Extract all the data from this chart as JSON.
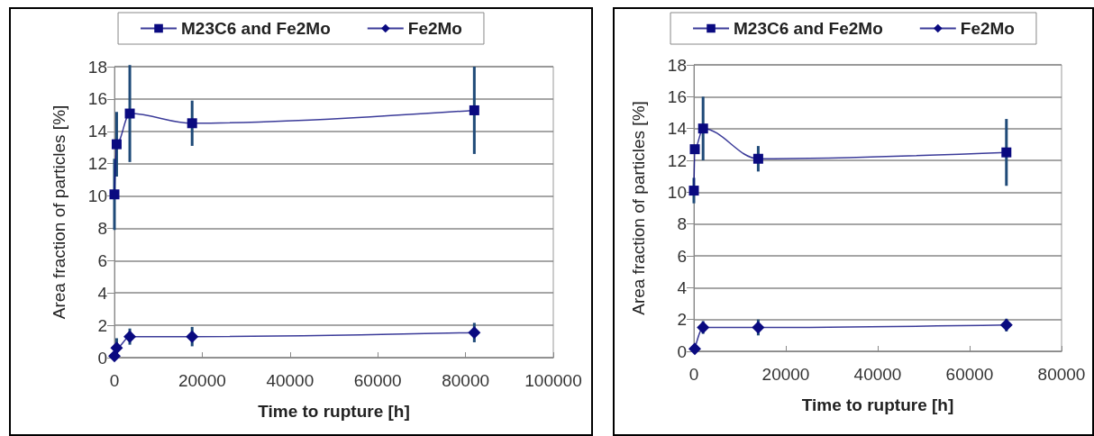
{
  "chart_data": [
    {
      "type": "line",
      "xlabel": "Time to rupture [h]",
      "ylabel": "Area fraction of particles [%]",
      "xlim": [
        0,
        100000
      ],
      "xticks": [
        0,
        20000,
        40000,
        60000,
        80000,
        100000
      ],
      "ylim": [
        0,
        18
      ],
      "yticks": [
        0,
        2,
        4,
        6,
        8,
        10,
        12,
        14,
        16,
        18
      ],
      "grid": "y",
      "legend": "top",
      "series": [
        {
          "name": "M23C6 and Fe2Mo",
          "color": "#0a0a80",
          "marker": "square",
          "x": [
            0,
            500,
            3500,
            17700,
            82000
          ],
          "values": [
            10.1,
            13.2,
            15.1,
            14.5,
            15.3
          ],
          "errors": [
            2.2,
            2,
            3,
            1.4,
            2.7
          ]
        },
        {
          "name": "Fe2Mo",
          "color": "#0a0a80",
          "marker": "diamond",
          "x": [
            0,
            500,
            3500,
            17700,
            82000
          ],
          "values": [
            0.1,
            0.6,
            1.3,
            1.3,
            1.55
          ],
          "errors": [
            null,
            0.6,
            0.5,
            0.6,
            0.6
          ]
        }
      ]
    },
    {
      "type": "line",
      "xlabel": "Time to rupture [h]",
      "ylabel": "Area fraction of particles [%]",
      "xlim": [
        0,
        80000
      ],
      "xticks": [
        0,
        20000,
        40000,
        60000,
        80000
      ],
      "ylim": [
        0,
        18
      ],
      "yticks": [
        0,
        2,
        4,
        6,
        8,
        10,
        12,
        14,
        16,
        18
      ],
      "grid": "y",
      "legend": "top",
      "series": [
        {
          "name": "M23C6 and Fe2Mo",
          "color": "#0a0a80",
          "marker": "square",
          "x": [
            0,
            200,
            2000,
            14000,
            68000
          ],
          "values": [
            10.1,
            12.7,
            14,
            12.1,
            12.5
          ],
          "errors": [
            0.8,
            null,
            2,
            0.8,
            2.1
          ]
        },
        {
          "name": "Fe2Mo",
          "color": "#0a0a80",
          "marker": "diamond",
          "x": [
            200,
            2000,
            14000,
            68000
          ],
          "values": [
            0.15,
            1.5,
            1.5,
            1.65
          ],
          "errors": [
            null,
            0.4,
            0.5,
            0.4
          ]
        }
      ]
    }
  ]
}
